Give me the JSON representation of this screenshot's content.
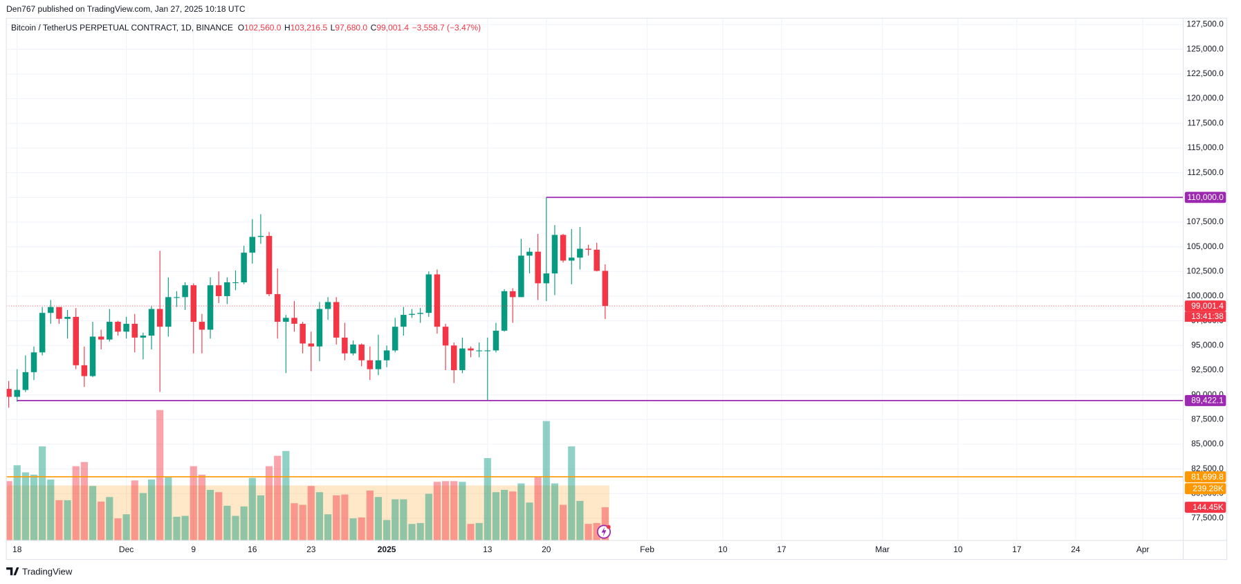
{
  "header": {
    "publisher": "Den767 published on TradingView.com, Jan 27, 2025 10:18 UTC"
  },
  "footer": "TradingView",
  "chart_data": {
    "type": "candlestick",
    "legend": {
      "symbol": "Bitcoin / TetherUS PERPETUAL CONTRACT, 1D, BINANCE",
      "fields": [
        {
          "key": "O",
          "value": "102,560.0"
        },
        {
          "key": "H",
          "value": "103,216.5"
        },
        {
          "key": "L",
          "value": "97,680.0"
        },
        {
          "key": "C",
          "value": "99,001.4"
        },
        {
          "key": "",
          "value": "−3,558.7 (−3.47%)"
        }
      ]
    },
    "x": [
      "2024-11-17",
      "2024-11-18",
      "2024-11-19",
      "2024-11-20",
      "2024-11-21",
      "2024-11-22",
      "2024-11-23",
      "2024-11-24",
      "2024-11-25",
      "2024-11-26",
      "2024-11-27",
      "2024-11-28",
      "2024-11-29",
      "2024-11-30",
      "2024-12-01",
      "2024-12-02",
      "2024-12-03",
      "2024-12-04",
      "2024-12-05",
      "2024-12-06",
      "2024-12-07",
      "2024-12-08",
      "2024-12-09",
      "2024-12-10",
      "2024-12-11",
      "2024-12-12",
      "2024-12-13",
      "2024-12-14",
      "2024-12-15",
      "2024-12-16",
      "2024-12-17",
      "2024-12-18",
      "2024-12-19",
      "2024-12-20",
      "2024-12-21",
      "2024-12-22",
      "2024-12-23",
      "2024-12-24",
      "2024-12-25",
      "2024-12-26",
      "2024-12-27",
      "2024-12-28",
      "2024-12-29",
      "2024-12-30",
      "2024-12-31",
      "2025-01-01",
      "2025-01-02",
      "2025-01-03",
      "2025-01-04",
      "2025-01-05",
      "2025-01-06",
      "2025-01-07",
      "2025-01-08",
      "2025-01-09",
      "2025-01-10",
      "2025-01-11",
      "2025-01-12",
      "2025-01-13",
      "2025-01-14",
      "2025-01-15",
      "2025-01-16",
      "2025-01-17",
      "2025-01-18",
      "2025-01-19",
      "2025-01-20",
      "2025-01-21",
      "2025-01-22",
      "2025-01-23",
      "2025-01-24",
      "2025-01-25",
      "2025-01-26",
      "2025-01-27"
    ],
    "open": [
      90600,
      89800,
      90500,
      92300,
      94300,
      98300,
      98900,
      97700,
      97900,
      93000,
      91900,
      95900,
      95600,
      97400,
      96400,
      97200,
      95800,
      96000,
      98700,
      96900,
      99900,
      99900,
      101100,
      97400,
      96600,
      101100,
      100000,
      101400,
      101400,
      104400,
      106000,
      106100,
      100200,
      97400,
      97800,
      97200,
      95200,
      94900,
      98700,
      99400,
      95800,
      94200,
      95100,
      93500,
      92600,
      93500,
      94500,
      96900,
      98100,
      98200,
      98300,
      102200,
      96900,
      95000,
      92500,
      94700,
      94500,
      94500,
      94500,
      96500,
      100500,
      99900,
      104100,
      104500,
      101300,
      102300,
      106200,
      103600,
      103900,
      104800,
      104700,
      102560
    ],
    "high": [
      91400,
      92600,
      94000,
      94900,
      98900,
      99600,
      98700,
      98600,
      98800,
      94900,
      97400,
      96600,
      98700,
      97500,
      97900,
      98200,
      96300,
      99000,
      104600,
      101900,
      100500,
      101400,
      101300,
      98200,
      101900,
      102500,
      101900,
      102600,
      105100,
      107800,
      108300,
      106500,
      102800,
      98100,
      99500,
      97400,
      96400,
      99400,
      99900,
      99900,
      97300,
      95500,
      95200,
      94900,
      96100,
      95000,
      97800,
      98900,
      98700,
      98800,
      102500,
      102700,
      97200,
      95300,
      95800,
      94900,
      95300,
      95800,
      97300,
      100700,
      100800,
      105800,
      104900,
      106300,
      110000,
      107200,
      106300,
      106800,
      107000,
      105200,
      105400,
      103216.5
    ],
    "low": [
      88700,
      89300,
      90300,
      91500,
      94000,
      97200,
      97200,
      95700,
      92600,
      90800,
      91800,
      94600,
      95400,
      96000,
      95700,
      94300,
      93600,
      94600,
      90300,
      95900,
      98900,
      98600,
      94200,
      94200,
      95700,
      99300,
      99200,
      100600,
      101200,
      103300,
      105300,
      100000,
      95700,
      92200,
      96400,
      94200,
      92400,
      93400,
      97600,
      95100,
      93500,
      94000,
      92900,
      91500,
      92000,
      92800,
      94300,
      96000,
      97800,
      97300,
      97900,
      96200,
      92500,
      91200,
      92200,
      93800,
      93800,
      89400,
      94300,
      96400,
      97300,
      99900,
      102300,
      99600,
      99500,
      100100,
      103400,
      101200,
      102700,
      104100,
      102500,
      97680
    ],
    "close": [
      89800,
      90500,
      92300,
      94300,
      98300,
      98900,
      97700,
      97900,
      93000,
      91900,
      95900,
      95600,
      97400,
      96400,
      97200,
      95800,
      96000,
      98700,
      96900,
      99900,
      99900,
      101100,
      97400,
      96600,
      101100,
      100000,
      101400,
      101400,
      104400,
      106000,
      106100,
      100200,
      97400,
      97800,
      97200,
      95200,
      94900,
      98700,
      99400,
      95800,
      94200,
      95100,
      93500,
      92600,
      93500,
      94500,
      96900,
      98100,
      98200,
      98300,
      102200,
      96900,
      95000,
      92500,
      94700,
      94500,
      94500,
      94500,
      96500,
      100500,
      99900,
      104100,
      104500,
      101300,
      102300,
      106200,
      103600,
      103900,
      104800,
      104700,
      102560,
      99001.4
    ],
    "up_color": "#089981",
    "down_color": "#f23645",
    "volume": {
      "values": [
        258,
        327,
        296,
        286,
        409,
        265,
        175,
        175,
        323,
        341,
        237,
        169,
        189,
        96,
        114,
        261,
        206,
        265,
        567,
        275,
        103,
        107,
        323,
        286,
        220,
        210,
        151,
        107,
        148,
        272,
        196,
        323,
        368,
        389,
        162,
        155,
        237,
        210,
        114,
        196,
        200,
        96,
        100,
        217,
        189,
        89,
        179,
        179,
        72,
        76,
        203,
        255,
        258,
        258,
        255,
        72,
        76,
        358,
        210,
        220,
        213,
        248,
        165,
        275,
        519,
        248,
        155,
        409,
        172,
        72,
        76,
        144.45
      ],
      "last_label": "144.45K",
      "ylim": [
        0,
        2270
      ],
      "ma": {
        "value": 239.28,
        "label": "239.28K",
        "color": "#ff9800"
      }
    },
    "xlim": [
      "2024-11-17",
      "2025-04-06"
    ],
    "xticks": [
      {
        "value": "2024-11-18",
        "label": "18"
      },
      {
        "value": "2024-12-01",
        "label": "Dec"
      },
      {
        "value": "2024-12-09",
        "label": "9"
      },
      {
        "value": "2024-12-16",
        "label": "16"
      },
      {
        "value": "2024-12-23",
        "label": "23"
      },
      {
        "value": "2025-01-01",
        "label": "2025"
      },
      {
        "value": "2025-01-13",
        "label": "13"
      },
      {
        "value": "2025-01-20",
        "label": "20"
      },
      {
        "value": "2025-02-01",
        "label": "Feb"
      },
      {
        "value": "2025-02-10",
        "label": "10"
      },
      {
        "value": "2025-02-17",
        "label": "17"
      },
      {
        "value": "2025-03-01",
        "label": "Mar"
      },
      {
        "value": "2025-03-10",
        "label": "10"
      },
      {
        "value": "2025-03-17",
        "label": "17"
      },
      {
        "value": "2025-03-24",
        "label": "24"
      },
      {
        "value": "2025-04-01",
        "label": "Apr"
      }
    ],
    "ylim": [
      75250,
      128150
    ],
    "yticks": [
      {
        "value": 77500,
        "label": "77,500.0"
      },
      {
        "value": 80000,
        "label": "80,000.0"
      },
      {
        "value": 82500,
        "label": "82,500.0"
      },
      {
        "value": 85000,
        "label": "85,000.0"
      },
      {
        "value": 87500,
        "label": "87,500.0"
      },
      {
        "value": 90000,
        "label": "90,000.0"
      },
      {
        "value": 92500,
        "label": "92,500.0"
      },
      {
        "value": 95000,
        "label": "95,000.0"
      },
      {
        "value": 97500,
        "label": "97,500.0"
      },
      {
        "value": 100000,
        "label": "100,000.0"
      },
      {
        "value": 102500,
        "label": "102,500.0"
      },
      {
        "value": 105000,
        "label": "105,000.0"
      },
      {
        "value": 107500,
        "label": "107,500.0"
      },
      {
        "value": 110000,
        "label": "110,000.0"
      },
      {
        "value": 112500,
        "label": "112,500.0"
      },
      {
        "value": 115000,
        "label": "115,000.0"
      },
      {
        "value": 117500,
        "label": "117,500.0"
      },
      {
        "value": 120000,
        "label": "120,000.0"
      },
      {
        "value": 122500,
        "label": "122,500.0"
      },
      {
        "value": 125000,
        "label": "125,000.0"
      },
      {
        "value": 127500,
        "label": "127,500.0"
      }
    ],
    "grid": true,
    "price_lines": [
      {
        "value": 110000,
        "label": "110,000.0",
        "color": "#9c27b0",
        "start": "2025-01-20"
      },
      {
        "value": 89422.1,
        "label": "89,422.1",
        "color": "#9c27b0",
        "start": "2024-11-18"
      },
      {
        "value": 81699.8,
        "label": "81,699.8",
        "color": "#ff9800"
      }
    ],
    "last_price": {
      "value": 99001.4,
      "label": "99,001.4",
      "countdown": "13:41:38",
      "color": "#f23645"
    }
  }
}
